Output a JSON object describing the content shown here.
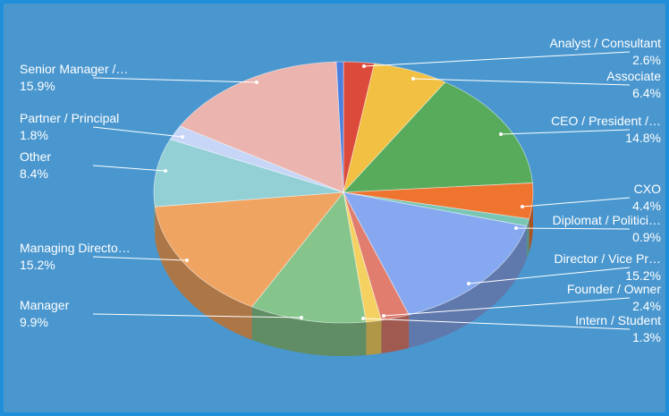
{
  "chart_data": {
    "type": "pie",
    "style": "3d",
    "title": "",
    "slices": [
      {
        "label": "Analyst / Consultant",
        "pct_text": "2.6%",
        "value": 2.6,
        "color": "#dc4a3c"
      },
      {
        "label": "Associate",
        "pct_text": "6.4%",
        "value": 6.4,
        "color": "#f2c042"
      },
      {
        "label": "CEO / President /…",
        "pct_text": "14.8%",
        "value": 14.8,
        "color": "#58ab5a"
      },
      {
        "label": "CXO",
        "pct_text": "4.4%",
        "value": 4.4,
        "color": "#ee7430"
      },
      {
        "label": "Diplomat / Politici…",
        "pct_text": "0.9%",
        "value": 0.9,
        "color": "#79c6b4"
      },
      {
        "label": "Director / Vice Pr…",
        "pct_text": "15.2%",
        "value": 15.2,
        "color": "#85a8f0"
      },
      {
        "label": "Founder / Owner",
        "pct_text": "2.4%",
        "value": 2.4,
        "color": "#e07d6f"
      },
      {
        "label": "Intern / Student",
        "pct_text": "1.3%",
        "value": 1.3,
        "color": "#f5d162"
      },
      {
        "label": "Manager",
        "pct_text": "9.9%",
        "value": 9.9,
        "color": "#85c48a"
      },
      {
        "label": "Managing Directo…",
        "pct_text": "15.2%",
        "value": 15.2,
        "color": "#f0a461"
      },
      {
        "label": "Other",
        "pct_text": "8.4%",
        "value": 8.4,
        "color": "#92d0d5"
      },
      {
        "label": "Partner / Principal",
        "pct_text": "1.8%",
        "value": 1.8,
        "color": "#c7d6f7"
      },
      {
        "label": "Senior Manager /…",
        "pct_text": "15.9%",
        "value": 15.9,
        "color": "#ebb4ae"
      },
      {
        "label": "",
        "pct_text": "",
        "value": 0.6,
        "color": "#4a7fe0"
      }
    ]
  }
}
